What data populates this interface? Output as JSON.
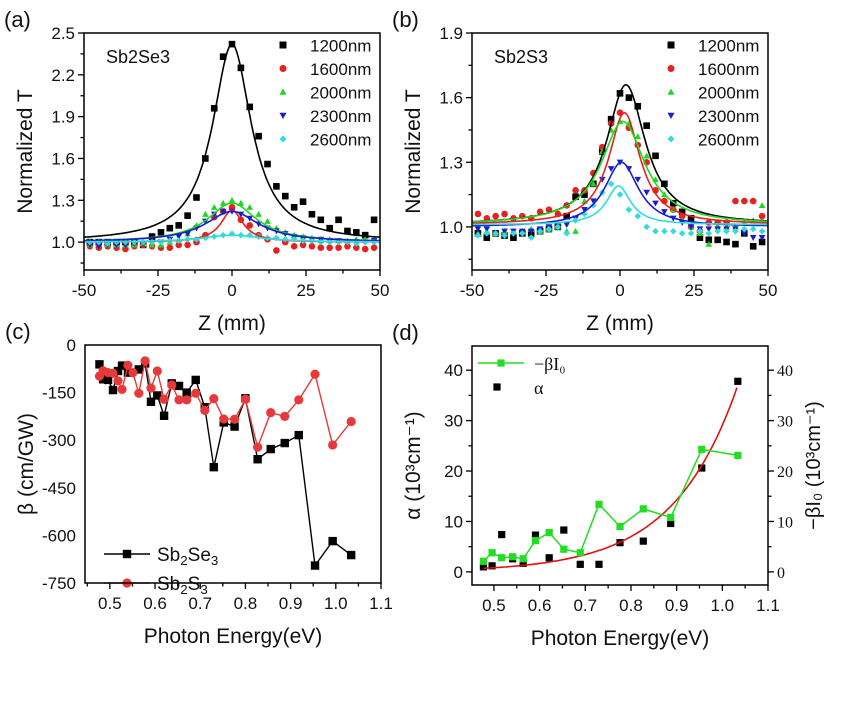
{
  "chart_data": [
    {
      "id": "a",
      "type": "scatter",
      "panel_label": "(a)",
      "sample_label": "Sb2Se3",
      "xlabel": "Z (mm)",
      "ylabel": "Normalized T",
      "xlim": [
        -50,
        50
      ],
      "ylim": [
        0.8,
        2.5
      ],
      "xticks": [
        "-50",
        "-25",
        "0",
        "25",
        "50"
      ],
      "yticks": [
        "1.0",
        "1.3",
        "1.6",
        "1.9",
        "2.2",
        "2.5"
      ],
      "legend_position": "top-right",
      "x": [
        -48,
        -45,
        -42,
        -39,
        -36,
        -33,
        -30,
        -27,
        -24,
        -21,
        -18,
        -15,
        -12,
        -9,
        -6,
        -3,
        0,
        3,
        6,
        9,
        12,
        15,
        18,
        21,
        24,
        27,
        30,
        33,
        36,
        39,
        42,
        45,
        48
      ],
      "series": [
        {
          "name": "1200nm",
          "color": "#000000",
          "marker": "square",
          "values": [
            1.0,
            1.0,
            1.0,
            1.0,
            1.0,
            1.0,
            0.98,
            1.04,
            1.07,
            1.1,
            1.12,
            1.19,
            1.32,
            1.6,
            1.96,
            2.33,
            2.42,
            2.25,
            1.97,
            1.76,
            1.56,
            1.4,
            1.33,
            1.25,
            1.29,
            1.2,
            1.16,
            1.1,
            1.16,
            1.08,
            1.07,
            1.05,
            1.16
          ],
          "fit": {
            "baseline": 1.0,
            "peak": 2.42,
            "center": 0,
            "width": 8
          }
        },
        {
          "name": "1600nm",
          "color": "#e8201e",
          "marker": "circle",
          "values": [
            0.97,
            0.96,
            0.97,
            0.96,
            0.95,
            0.97,
            0.98,
            0.97,
            0.96,
            0.96,
            0.98,
            0.98,
            1.0,
            1.05,
            1.18,
            1.22,
            1.25,
            1.16,
            1.12,
            1.05,
            1.02,
            0.94,
            1.0,
            0.97,
            0.98,
            0.97,
            0.96,
            0.96,
            0.96,
            0.97,
            0.96,
            0.95,
            0.96
          ],
          "fit": {
            "baseline": 1.0,
            "peak": 1.23,
            "center": 0,
            "width": 4.5
          }
        },
        {
          "name": "2000nm",
          "color": "#22d622",
          "marker": "triangle-up",
          "values": [
            0.98,
            0.99,
            0.98,
            0.98,
            0.98,
            0.98,
            0.99,
            0.98,
            0.98,
            1.0,
            1.02,
            1.06,
            1.12,
            1.2,
            1.25,
            1.28,
            1.3,
            1.28,
            1.25,
            1.2,
            1.15,
            1.1,
            1.07,
            1.05,
            1.04,
            1.03,
            1.02,
            1.02,
            1.01,
            1.01,
            1.02,
            1.02,
            1.02
          ],
          "fit": {
            "baseline": 1.0,
            "peak": 1.28,
            "center": 0,
            "width": 10
          }
        },
        {
          "name": "2300nm",
          "color": "#1c1ccc",
          "marker": "triangle-down",
          "values": [
            0.98,
            0.97,
            0.98,
            0.98,
            0.98,
            0.99,
            0.99,
            1.0,
            1.0,
            1.02,
            1.04,
            1.06,
            1.1,
            1.15,
            1.2,
            1.22,
            1.22,
            1.2,
            1.17,
            1.13,
            1.1,
            1.08,
            1.06,
            1.04,
            1.03,
            1.02,
            1.02,
            1.01,
            1.01,
            1.0,
            1.0,
            1.0,
            1.01
          ],
          "fit": {
            "baseline": 1.0,
            "peak": 1.22,
            "center": 0,
            "width": 11
          }
        },
        {
          "name": "2600nm",
          "color": "#33dcdc",
          "marker": "diamond",
          "values": [
            1.0,
            1.0,
            0.99,
            1.0,
            1.0,
            1.0,
            1.0,
            1.0,
            1.0,
            1.01,
            1.01,
            1.02,
            1.02,
            1.03,
            1.04,
            1.05,
            1.06,
            1.05,
            1.05,
            1.04,
            1.03,
            1.03,
            1.02,
            1.02,
            1.01,
            1.01,
            1.0,
            1.0,
            1.0,
            1.0,
            0.99,
            1.0,
            1.0
          ],
          "fit": {
            "baseline": 1.0,
            "peak": 1.05,
            "center": 0,
            "width": 12
          }
        }
      ]
    },
    {
      "id": "b",
      "type": "scatter",
      "panel_label": "(b)",
      "sample_label": "Sb2S3",
      "xlabel": "Z (mm)",
      "ylabel": "Normalized T",
      "xlim": [
        -50,
        50
      ],
      "ylim": [
        0.8,
        1.9
      ],
      "xticks": [
        "-50",
        "-25",
        "0",
        "25",
        "50"
      ],
      "yticks": [
        "1.0",
        "1.3",
        "1.6",
        "1.9"
      ],
      "legend_position": "top-right",
      "x": [
        -48,
        -45,
        -42,
        -39,
        -36,
        -33,
        -30,
        -27,
        -24,
        -21,
        -18,
        -15,
        -12,
        -9,
        -6,
        -3,
        0,
        3,
        6,
        9,
        12,
        15,
        18,
        21,
        24,
        27,
        30,
        33,
        36,
        39,
        42,
        45,
        48
      ],
      "series": [
        {
          "name": "1200nm",
          "color": "#000000",
          "marker": "square",
          "values": [
            0.97,
            0.95,
            0.97,
            0.96,
            0.95,
            0.97,
            0.97,
            0.98,
            0.99,
            1.0,
            1.05,
            1.14,
            1.15,
            1.2,
            1.35,
            1.5,
            1.62,
            1.6,
            1.56,
            1.47,
            1.33,
            1.2,
            1.11,
            1.07,
            1.04,
            0.95,
            0.94,
            0.94,
            0.93,
            0.92,
            0.97,
            0.91,
            0.93
          ],
          "fit": {
            "baseline": 1.01,
            "peak": 1.66,
            "center": 2,
            "width": 8
          }
        },
        {
          "name": "1600nm",
          "color": "#e8201e",
          "marker": "circle",
          "values": [
            1.06,
            1.04,
            1.05,
            1.06,
            1.04,
            1.05,
            1.04,
            1.07,
            1.08,
            1.06,
            1.1,
            1.17,
            1.17,
            1.25,
            1.37,
            1.48,
            1.53,
            1.46,
            1.38,
            1.3,
            1.17,
            1.12,
            1.08,
            1.05,
            1.0,
            0.98,
            1.02,
            1.02,
            1.02,
            1.12,
            1.12,
            1.12,
            1.05
          ],
          "fit": {
            "baseline": 1.01,
            "peak": 1.53,
            "center": 1.5,
            "width": 6.5
          }
        },
        {
          "name": "2000nm",
          "color": "#22d622",
          "marker": "triangle-up",
          "values": [
            0.97,
            0.98,
            0.97,
            0.98,
            0.98,
            0.98,
            0.99,
            0.98,
            0.99,
            1.0,
            0.98,
            0.98,
            1.12,
            1.2,
            1.35,
            1.45,
            1.49,
            1.48,
            1.42,
            1.33,
            1.22,
            1.15,
            1.08,
            1.03,
            1.0,
            0.97,
            0.92,
            1.0,
            1.0,
            1.0,
            1.02,
            1.03,
            1.1
          ],
          "fit": {
            "baseline": 1.01,
            "peak": 1.49,
            "center": 1,
            "width": 9
          }
        },
        {
          "name": "2300nm",
          "color": "#1c1ccc",
          "marker": "triangle-down",
          "values": [
            0.99,
            0.99,
            0.97,
            0.98,
            0.98,
            0.98,
            0.98,
            0.99,
            1.0,
            1.0,
            1.01,
            1.04,
            1.08,
            1.12,
            1.22,
            1.27,
            1.3,
            1.27,
            1.22,
            1.16,
            1.11,
            1.07,
            1.04,
            1.02,
            1.0,
            0.99,
            0.99,
            0.99,
            0.99,
            0.99,
            0.97,
            0.95,
            0.95
          ],
          "fit": {
            "baseline": 1.0,
            "peak": 1.3,
            "center": 0.5,
            "width": 7
          }
        },
        {
          "name": "2600nm",
          "color": "#33dcdc",
          "marker": "diamond",
          "values": [
            0.96,
            0.97,
            0.97,
            0.96,
            0.97,
            0.97,
            0.95,
            0.98,
            0.99,
            1.0,
            0.97,
            1.03,
            1.06,
            1.1,
            1.16,
            1.2,
            1.15,
            1.08,
            1.05,
            1.0,
            0.98,
            0.98,
            0.98,
            0.97,
            0.97,
            0.98,
            0.97,
            0.98,
            0.98,
            0.98,
            0.99,
            0.99,
            0.98
          ],
          "fit": {
            "baseline": 1.01,
            "peak": 1.19,
            "center": -0.5,
            "width": 5
          }
        }
      ]
    },
    {
      "id": "c",
      "type": "line",
      "panel_label": "(c)",
      "xlabel": "Photon Energy(eV)",
      "ylabel": "β (cm/GW)",
      "xlim": [
        0.445,
        1.1
      ],
      "ylim": [
        -750,
        0
      ],
      "xticks": [
        "0.5",
        "0.6",
        "0.7",
        "0.8",
        "0.9",
        "1.0",
        "1.1"
      ],
      "yticks": [
        "0",
        "-150",
        "-300",
        "-450",
        "-600",
        "-750"
      ],
      "legend_position": "bottom-left",
      "series": [
        {
          "name": "Sb2Se3",
          "color": "#000000",
          "marker": "square",
          "x": [
            0.477,
            0.485,
            0.496,
            0.507,
            0.518,
            0.527,
            0.54,
            0.564,
            0.578,
            0.591,
            0.605,
            0.62,
            0.637,
            0.653,
            0.67,
            0.69,
            0.71,
            0.73,
            0.752,
            0.776,
            0.8,
            0.827,
            0.856,
            0.887,
            0.918,
            0.954,
            0.993,
            1.034
          ],
          "y": [
            -61,
            -108,
            -110,
            -142,
            -82,
            -65,
            -87,
            -77,
            -58,
            -179,
            -159,
            -223,
            -121,
            -129,
            -150,
            -110,
            -196,
            -385,
            -244,
            -257,
            -168,
            -360,
            -328,
            -309,
            -284,
            -695,
            -618,
            -662
          ]
        },
        {
          "name": "Sb2S3",
          "color": "#e8393a",
          "marker": "circle",
          "x": [
            0.477,
            0.485,
            0.496,
            0.507,
            0.518,
            0.527,
            0.54,
            0.551,
            0.564,
            0.578,
            0.591,
            0.605,
            0.62,
            0.637,
            0.653,
            0.67,
            0.69,
            0.71,
            0.73,
            0.752,
            0.776,
            0.8,
            0.827,
            0.856,
            0.887,
            0.918,
            0.954,
            0.993,
            1.034
          ],
          "y": [
            -98,
            -81,
            -87,
            -89,
            -113,
            -140,
            -64,
            -87,
            -152,
            -50,
            -136,
            -82,
            -171,
            -126,
            -173,
            -173,
            -152,
            -206,
            -169,
            -233,
            -234,
            -171,
            -322,
            -213,
            -225,
            -173,
            -92,
            -315,
            -241
          ]
        }
      ]
    },
    {
      "id": "d",
      "type": "scatter",
      "panel_label": "(d)",
      "xlabel": "Photon Energy(eV)",
      "ylabel": "α (10³cm⁻¹)",
      "ylabel_right": "−βI₀ (10³cm⁻¹)",
      "xlim": [
        0.452,
        1.1
      ],
      "ylim": [
        -2.6,
        44.8
      ],
      "xticks": [
        "0.5",
        "0.6",
        "0.7",
        "0.8",
        "0.9",
        "1.0",
        "1.1"
      ],
      "yticks": [
        "0",
        "10",
        "20",
        "30",
        "40"
      ],
      "yticks_right": [
        "0",
        "10",
        "20",
        "30",
        "40"
      ],
      "legend_position": "top-left",
      "series": [
        {
          "name": "−βI₀",
          "color": "#22dd22",
          "marker": "square",
          "connected": true,
          "x": [
            0.477,
            0.496,
            0.517,
            0.541,
            0.564,
            0.591,
            0.621,
            0.653,
            0.689,
            0.73,
            0.776,
            0.827,
            0.887,
            0.955,
            1.034
          ],
          "y": [
            2.1,
            3.8,
            2.8,
            3.0,
            2.6,
            6.2,
            7.8,
            4.5,
            3.8,
            13.4,
            9.0,
            12.5,
            10.8,
            24.3,
            23.1
          ]
        },
        {
          "name": "α",
          "color": "#000000",
          "marker": "square",
          "connected": false,
          "x": [
            0.477,
            0.496,
            0.517,
            0.541,
            0.564,
            0.591,
            0.621,
            0.653,
            0.689,
            0.73,
            0.776,
            0.827,
            0.887,
            0.955,
            1.034
          ],
          "y": [
            1.0,
            1.2,
            7.4,
            2.6,
            1.7,
            7.3,
            2.8,
            8.3,
            1.5,
            1.5,
            5.8,
            6.1,
            9.6,
            20.6,
            37.8
          ]
        }
      ],
      "fit": {
        "type": "exponential",
        "color": "#dd1111",
        "a": 0.0233,
        "b": 7.13,
        "xrange": [
          0.477,
          1.034
        ]
      }
    }
  ]
}
